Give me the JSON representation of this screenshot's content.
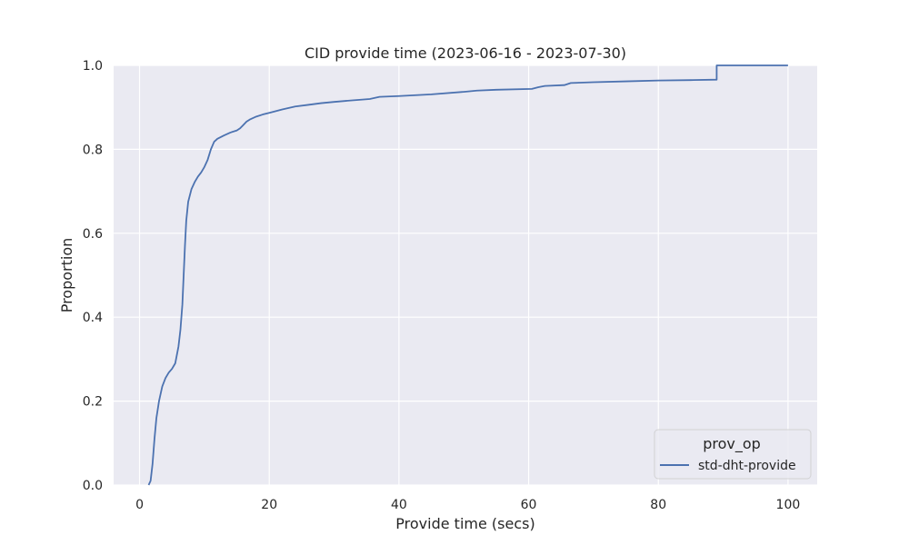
{
  "chart_data": {
    "type": "line",
    "title": "CID provide time (2023-06-16 - 2023-07-30)",
    "xlabel": "Provide time (secs)",
    "ylabel": "Proportion",
    "xlim": [
      -4,
      104.5
    ],
    "ylim": [
      0,
      1.0
    ],
    "xticks": [
      0,
      20,
      40,
      60,
      80,
      100
    ],
    "yticks": [
      0.0,
      0.2,
      0.4,
      0.6,
      0.8,
      1.0
    ],
    "xtick_labels": [
      "0",
      "20",
      "40",
      "60",
      "80",
      "100"
    ],
    "ytick_labels": [
      "0.0",
      "0.2",
      "0.4",
      "0.6",
      "0.8",
      "1.0"
    ],
    "grid": true,
    "legend": {
      "title": "prov_op",
      "placement": "lower-right"
    },
    "series": [
      {
        "name": "std-dht-provide",
        "color": "#4c72b0",
        "points": [
          [
            1.4,
            0.0
          ],
          [
            1.7,
            0.01
          ],
          [
            2.0,
            0.05
          ],
          [
            2.3,
            0.11
          ],
          [
            2.6,
            0.16
          ],
          [
            3.0,
            0.2
          ],
          [
            3.5,
            0.235
          ],
          [
            4.0,
            0.255
          ],
          [
            4.5,
            0.268
          ],
          [
            5.0,
            0.277
          ],
          [
            5.5,
            0.29
          ],
          [
            6.0,
            0.33
          ],
          [
            6.3,
            0.37
          ],
          [
            6.6,
            0.43
          ],
          [
            6.8,
            0.5
          ],
          [
            7.0,
            0.57
          ],
          [
            7.2,
            0.63
          ],
          [
            7.5,
            0.675
          ],
          [
            8.0,
            0.705
          ],
          [
            8.5,
            0.722
          ],
          [
            9.0,
            0.735
          ],
          [
            9.5,
            0.745
          ],
          [
            10.0,
            0.758
          ],
          [
            10.5,
            0.775
          ],
          [
            11.0,
            0.8
          ],
          [
            11.5,
            0.818
          ],
          [
            12.0,
            0.825
          ],
          [
            13.0,
            0.833
          ],
          [
            14.0,
            0.84
          ],
          [
            15.0,
            0.845
          ],
          [
            15.5,
            0.85
          ],
          [
            16.0,
            0.858
          ],
          [
            16.5,
            0.866
          ],
          [
            17.0,
            0.871
          ],
          [
            18.0,
            0.878
          ],
          [
            19.0,
            0.883
          ],
          [
            20.0,
            0.887
          ],
          [
            22.0,
            0.895
          ],
          [
            24.0,
            0.902
          ],
          [
            26.0,
            0.906
          ],
          [
            28.0,
            0.91
          ],
          [
            30.0,
            0.913
          ],
          [
            33.0,
            0.917
          ],
          [
            35.5,
            0.92
          ],
          [
            37.0,
            0.925
          ],
          [
            40.0,
            0.927
          ],
          [
            45.0,
            0.931
          ],
          [
            50.0,
            0.937
          ],
          [
            52.0,
            0.94
          ],
          [
            55.0,
            0.942
          ],
          [
            60.5,
            0.944
          ],
          [
            61.5,
            0.948
          ],
          [
            62.5,
            0.951
          ],
          [
            65.5,
            0.953
          ],
          [
            66.5,
            0.958
          ],
          [
            70.0,
            0.96
          ],
          [
            75.0,
            0.962
          ],
          [
            80.0,
            0.964
          ],
          [
            85.0,
            0.965
          ],
          [
            89.0,
            0.966
          ],
          [
            89.0,
            1.0
          ],
          [
            100.0,
            1.0
          ]
        ]
      }
    ]
  }
}
